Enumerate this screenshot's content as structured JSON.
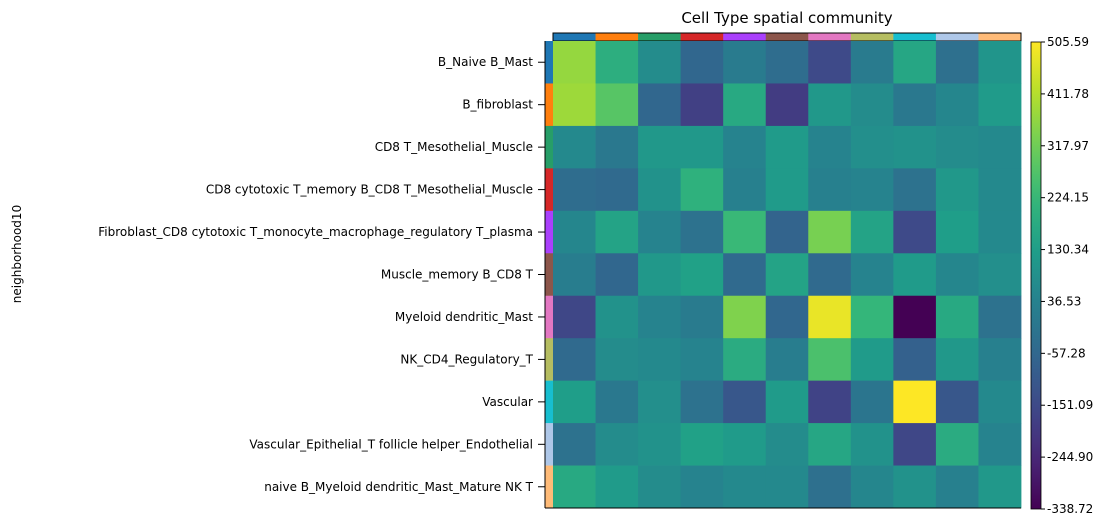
{
  "chart_data": {
    "type": "heatmap",
    "title": "Cell Type spatial community",
    "ylabel": "neighborhood10",
    "xlabel": "",
    "rows": [
      "B_Naive B_Mast",
      "B_fibroblast",
      "CD8 T_Mesothelial_Muscle",
      "CD8 cytotoxic T_memory B_CD8 T_Mesothelial_Muscle",
      "Fibroblast_CD8 cytotoxic T_monocyte_macrophage_regulatory T_plasma",
      "Muscle_memory B_CD8 T",
      "Myeloid dendritic_Mast",
      "NK_CD4_Regulatory_T",
      "Vascular",
      "Vascular_Epithelial_T follicle helper_Endothelial",
      "naive B_Myeloid dendritic_Mast_Mature NK T"
    ],
    "row_colors": [
      "#1f77b4",
      "#ff7f0e",
      "#279e68",
      "#d62728",
      "#aa40fc",
      "#8c564b",
      "#e377c2",
      "#b5bd61",
      "#17becf",
      "#aec7e8",
      "#ffbb78"
    ],
    "columns_count": 11,
    "column_colors": [
      "#1f77b4",
      "#ff7f0e",
      "#279e68",
      "#d62728",
      "#aa40fc",
      "#8c564b",
      "#e377c2",
      "#b5bd61",
      "#17becf",
      "#aec7e8",
      "#ffbb78"
    ],
    "values": [
      [
        370,
        190,
        70,
        -60,
        10,
        -40,
        -150,
        10,
        160,
        -30,
        100
      ],
      [
        380,
        280,
        -60,
        -180,
        170,
        -190,
        110,
        70,
        0,
        50,
        120
      ],
      [
        60,
        0,
        110,
        110,
        40,
        120,
        40,
        80,
        90,
        70,
        60
      ],
      [
        -40,
        -50,
        90,
        200,
        30,
        120,
        30,
        40,
        -20,
        110,
        60
      ],
      [
        50,
        150,
        40,
        -20,
        230,
        -70,
        330,
        150,
        -150,
        130,
        60
      ],
      [
        20,
        -60,
        110,
        140,
        -50,
        150,
        -50,
        40,
        120,
        50,
        80
      ],
      [
        -160,
        90,
        40,
        10,
        340,
        -60,
        480,
        220,
        -338.72,
        170,
        -20
      ],
      [
        -50,
        70,
        60,
        40,
        180,
        20,
        260,
        120,
        -80,
        110,
        30
      ],
      [
        130,
        0,
        80,
        -20,
        -110,
        120,
        -170,
        -10,
        505.59,
        -110,
        60
      ],
      [
        -20,
        70,
        90,
        140,
        120,
        70,
        160,
        90,
        -160,
        180,
        40
      ],
      [
        170,
        120,
        70,
        40,
        60,
        60,
        -30,
        50,
        90,
        30,
        110
      ]
    ],
    "vmin": -338.72,
    "vmax": 505.59,
    "colorbar_ticks": [
      "-338.72",
      "-244.90",
      "-151.09",
      "-57.28",
      "36.53",
      "130.34",
      "224.15",
      "317.97",
      "411.78",
      "505.59"
    ],
    "colormap": "viridis",
    "grid": false
  }
}
